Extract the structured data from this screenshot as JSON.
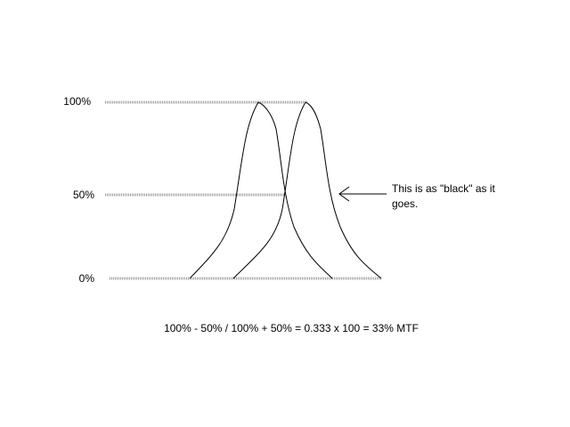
{
  "axis_labels": [
    "100%",
    "50%",
    "0%"
  ],
  "annotation": {
    "lines": [
      "This is as \"black\" as it",
      "goes."
    ]
  },
  "formula": "100% - 50% / 100% + 50% = 0.333 x 100 = 33% MTF"
}
